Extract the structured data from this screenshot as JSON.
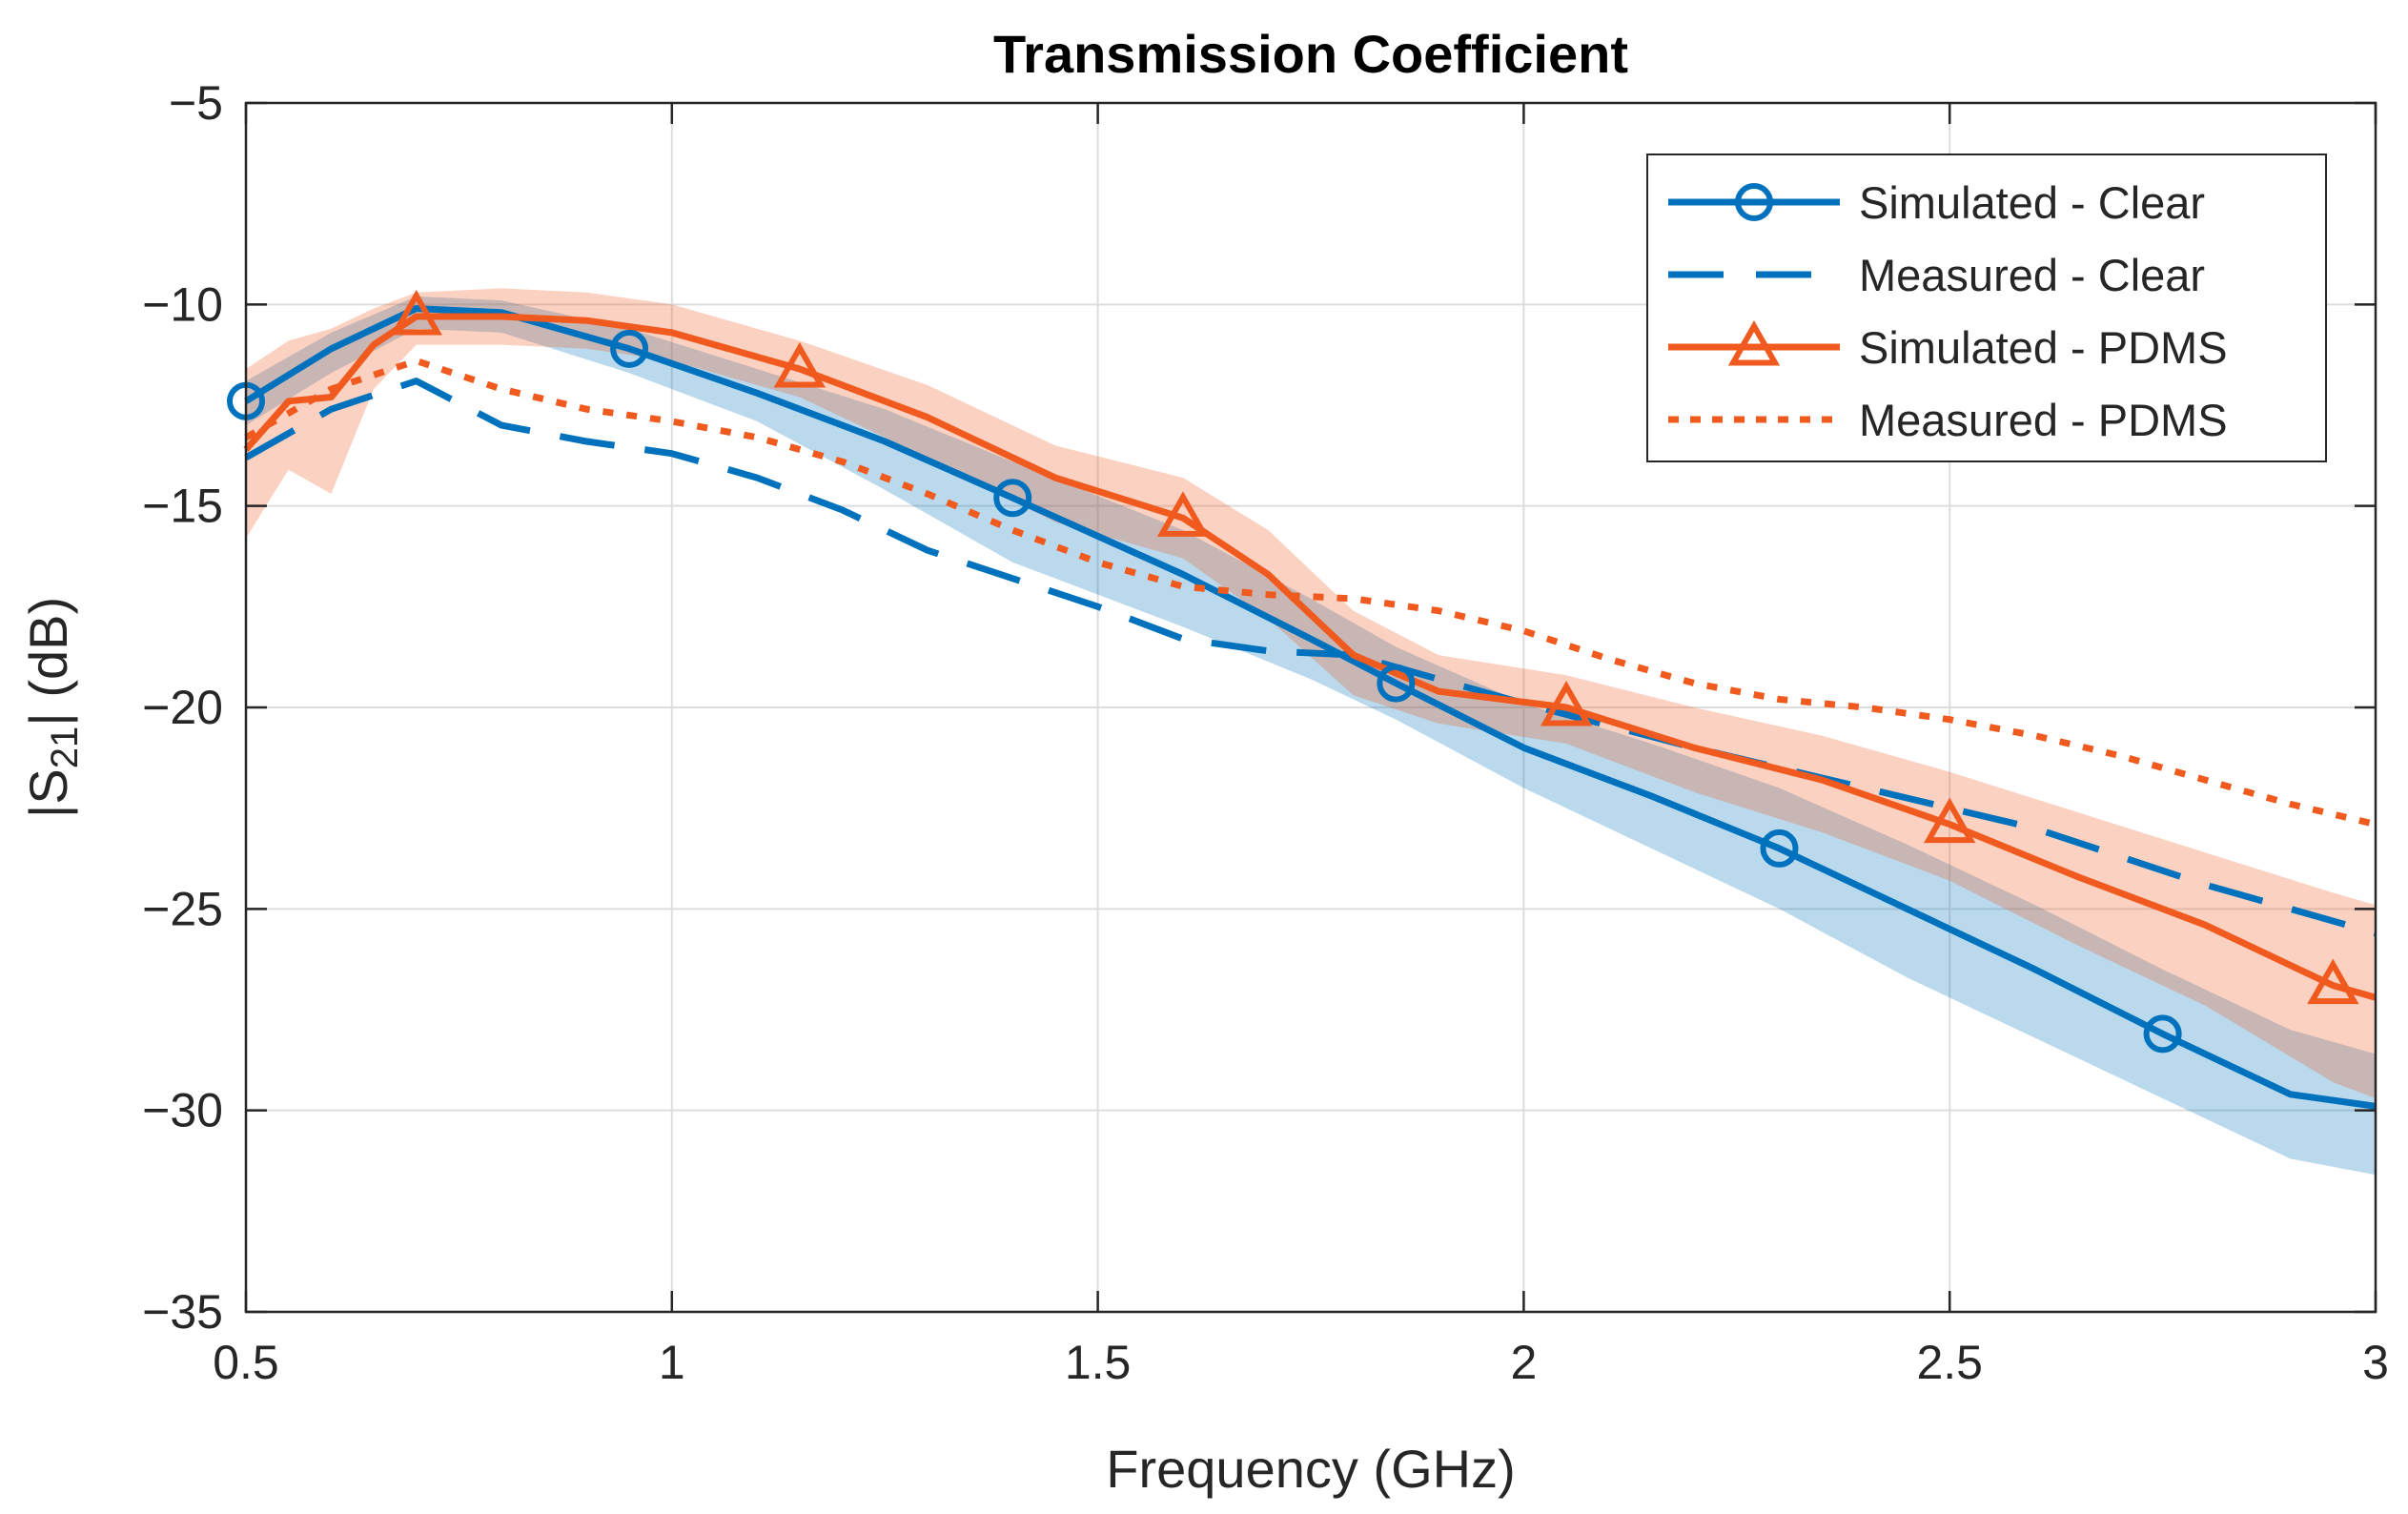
{
  "chart_data": {
    "type": "line",
    "title": "Transmission Coefficient",
    "xlabel": "Frequency (GHz)",
    "ylabel": {
      "main": "|S",
      "sub": "21",
      "rest": "| (dB)"
    },
    "xlim": [
      0.5,
      3
    ],
    "ylim": [
      -35,
      -5
    ],
    "xticks": [
      0.5,
      1,
      1.5,
      2,
      2.5,
      3
    ],
    "yticks": [
      -35,
      -30,
      -25,
      -20,
      -15,
      -10,
      -5
    ],
    "xtick_labels": [
      "0.5",
      "1",
      "1.5",
      "2",
      "2.5",
      "3"
    ],
    "ytick_labels": [
      "−35",
      "−30",
      "−25",
      "−20",
      "−15",
      "−10",
      "−5"
    ],
    "grid": true,
    "legend_position": "top-right",
    "series": [
      {
        "name": "Simulated - Clear",
        "color": "#0072BD",
        "style": "solid",
        "marker": "circle",
        "x": [
          0.5,
          0.6,
          0.7,
          0.8,
          0.95,
          1.1,
          1.25,
          1.4,
          1.6,
          1.75,
          1.85,
          2.0,
          2.15,
          2.3,
          2.45,
          2.6,
          2.75,
          2.9,
          3.0
        ],
        "y": [
          -12.4,
          -11.1,
          -10.1,
          -10.2,
          -11.1,
          -12.2,
          -13.4,
          -14.8,
          -16.7,
          -18.3,
          -19.4,
          -21.0,
          -22.2,
          -23.5,
          -25.0,
          -26.5,
          -28.1,
          -29.6,
          -29.9
        ],
        "marker_x": [
          0.5,
          0.95,
          1.4,
          1.85,
          2.3,
          2.75
        ],
        "marker_y": [
          -12.4,
          -11.1,
          -14.8,
          -19.4,
          -23.5,
          -28.1
        ],
        "band_upper": [
          -11.9,
          -10.7,
          -9.8,
          -9.9,
          -10.6,
          -11.6,
          -12.6,
          -13.9,
          -15.6,
          -17.3,
          -18.5,
          -19.9,
          -20.9,
          -22.0,
          -23.4,
          -24.9,
          -26.5,
          -28.0,
          -28.6
        ],
        "band_lower": [
          -13.0,
          -11.7,
          -10.6,
          -10.7,
          -11.7,
          -12.9,
          -14.6,
          -16.4,
          -18.0,
          -19.3,
          -20.3,
          -22.0,
          -23.5,
          -25.0,
          -26.7,
          -28.2,
          -29.7,
          -31.2,
          -31.6
        ]
      },
      {
        "name": "Measured - Clear",
        "color": "#0072BD",
        "style": "dashed",
        "marker": "none",
        "x": [
          0.5,
          0.6,
          0.7,
          0.8,
          0.9,
          1.0,
          1.1,
          1.2,
          1.3,
          1.4,
          1.5,
          1.6,
          1.7,
          1.8,
          1.9,
          2.0,
          2.2,
          2.4,
          2.6,
          2.8,
          3.0
        ],
        "y": [
          -13.8,
          -12.6,
          -11.9,
          -13.0,
          -13.4,
          -13.7,
          -14.3,
          -15.1,
          -16.1,
          -16.8,
          -17.5,
          -18.3,
          -18.6,
          -18.7,
          -19.3,
          -19.9,
          -21.0,
          -22.0,
          -23.0,
          -24.4,
          -25.6
        ]
      },
      {
        "name": "Simulated - PDMS",
        "color": "#F05A1E",
        "style": "solid",
        "marker": "triangle",
        "x": [
          0.5,
          0.55,
          0.6,
          0.65,
          0.7,
          0.8,
          0.9,
          1.0,
          1.15,
          1.3,
          1.45,
          1.6,
          1.7,
          1.8,
          1.9,
          2.05,
          2.2,
          2.35,
          2.5,
          2.65,
          2.8,
          2.95,
          3.0
        ],
        "y": [
          -13.6,
          -12.4,
          -12.3,
          -11.0,
          -10.3,
          -10.3,
          -10.4,
          -10.7,
          -11.6,
          -12.8,
          -14.3,
          -15.3,
          -16.7,
          -18.7,
          -19.6,
          -20.0,
          -21.0,
          -21.8,
          -22.9,
          -24.2,
          -25.4,
          -26.9,
          -27.2
        ],
        "marker_x": [
          0.7,
          1.15,
          1.6,
          2.05,
          2.5,
          2.95
        ],
        "marker_y": [
          -10.3,
          -11.6,
          -15.3,
          -20.0,
          -22.9,
          -26.9
        ],
        "band_upper": [
          -11.6,
          -10.9,
          -10.6,
          -10.1,
          -9.7,
          -9.6,
          -9.7,
          -10.0,
          -10.9,
          -12.0,
          -13.5,
          -14.3,
          -15.6,
          -17.6,
          -18.7,
          -19.2,
          -20.0,
          -20.7,
          -21.6,
          -22.6,
          -23.6,
          -24.6,
          -24.9
        ],
        "band_lower": [
          -15.8,
          -14.1,
          -14.7,
          -12.1,
          -11.0,
          -11.0,
          -11.1,
          -11.4,
          -12.3,
          -13.8,
          -15.4,
          -16.3,
          -17.8,
          -19.7,
          -20.4,
          -20.9,
          -22.1,
          -23.1,
          -24.3,
          -25.9,
          -27.4,
          -29.3,
          -29.7
        ]
      },
      {
        "name": "Measured - PDMS",
        "color": "#F05A1E",
        "style": "dotted",
        "marker": "none",
        "x": [
          0.5,
          0.6,
          0.7,
          0.8,
          0.9,
          1.0,
          1.1,
          1.2,
          1.3,
          1.4,
          1.5,
          1.6,
          1.7,
          1.8,
          1.9,
          2.0,
          2.1,
          2.2,
          2.3,
          2.4,
          2.5,
          2.6,
          2.7,
          2.8,
          2.9,
          3.0
        ],
        "y": [
          -13.3,
          -12.1,
          -11.4,
          -12.1,
          -12.6,
          -12.9,
          -13.3,
          -13.9,
          -14.7,
          -15.6,
          -16.4,
          -17.0,
          -17.2,
          -17.3,
          -17.6,
          -18.1,
          -18.8,
          -19.4,
          -19.8,
          -20.0,
          -20.3,
          -20.7,
          -21.2,
          -21.8,
          -22.4,
          -22.9
        ]
      }
    ]
  }
}
